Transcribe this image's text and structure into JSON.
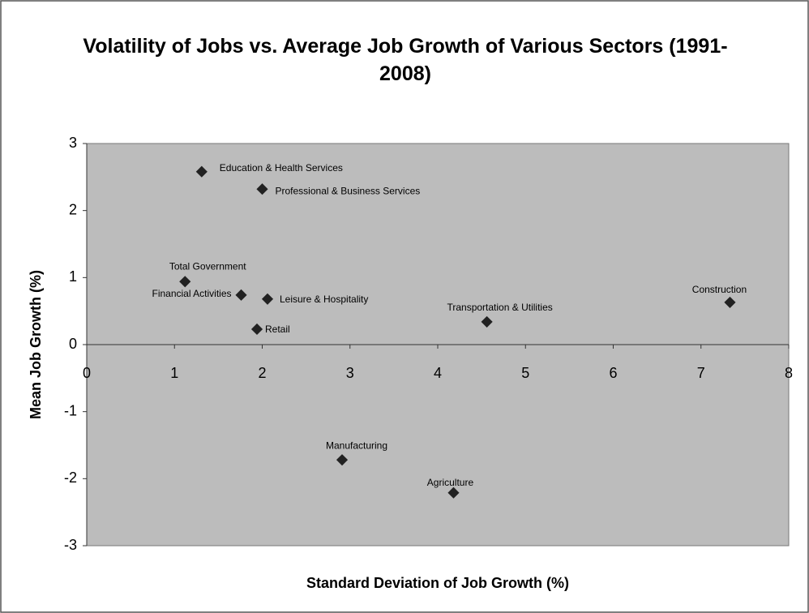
{
  "chart_data": {
    "type": "scatter",
    "title": "Volatility of Jobs vs. Average Job Growth of Various Sectors (1991-2008)",
    "x_label": "Standard Deviation of Job Growth (%)",
    "y_label": "Mean Job Growth (%)",
    "labels": [
      "Education & Health Services",
      "Professional & Business Services",
      "Total Government",
      "Financial Activities",
      "Leisure & Hospitality",
      "Retail",
      "Transportation & Utilities",
      "Construction",
      "Manufacturing",
      "Agriculture"
    ],
    "x": [
      1.31,
      2.0,
      1.12,
      1.76,
      2.06,
      1.94,
      4.56,
      7.33,
      2.91,
      4.18
    ],
    "values": [
      2.58,
      2.32,
      0.94,
      0.74,
      0.68,
      0.23,
      0.34,
      0.63,
      -1.72,
      -2.21
    ],
    "color": "#222222",
    "xlim": [
      0,
      8
    ],
    "xticks": [
      0,
      1,
      2,
      3,
      4,
      5,
      6,
      7,
      8
    ],
    "ylim": [
      -3,
      3
    ],
    "yticks": [
      -3,
      -2,
      -1,
      0,
      1,
      2,
      3
    ],
    "grid": false
  }
}
